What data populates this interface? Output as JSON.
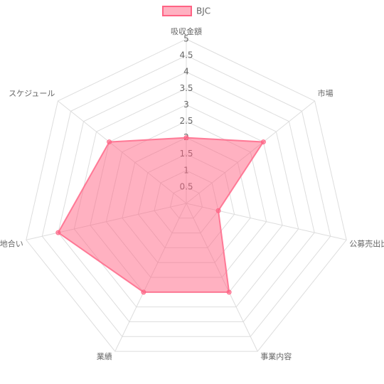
{
  "chart_data": {
    "type": "radar",
    "categories": [
      "吸収金額",
      "市場",
      "公募売出比",
      "事業内容",
      "業績",
      "地合い",
      "スケジュール"
    ],
    "series": [
      {
        "name": "BJC",
        "color": "#ff6384",
        "values": [
          2,
          3,
          1,
          3,
          3,
          4,
          3
        ]
      }
    ],
    "rlim": [
      0,
      5
    ],
    "rticks": [
      0.5,
      1,
      1.5,
      2,
      2.5,
      3,
      3.5,
      4,
      4.5,
      5
    ],
    "grid": true,
    "legend": "top"
  }
}
